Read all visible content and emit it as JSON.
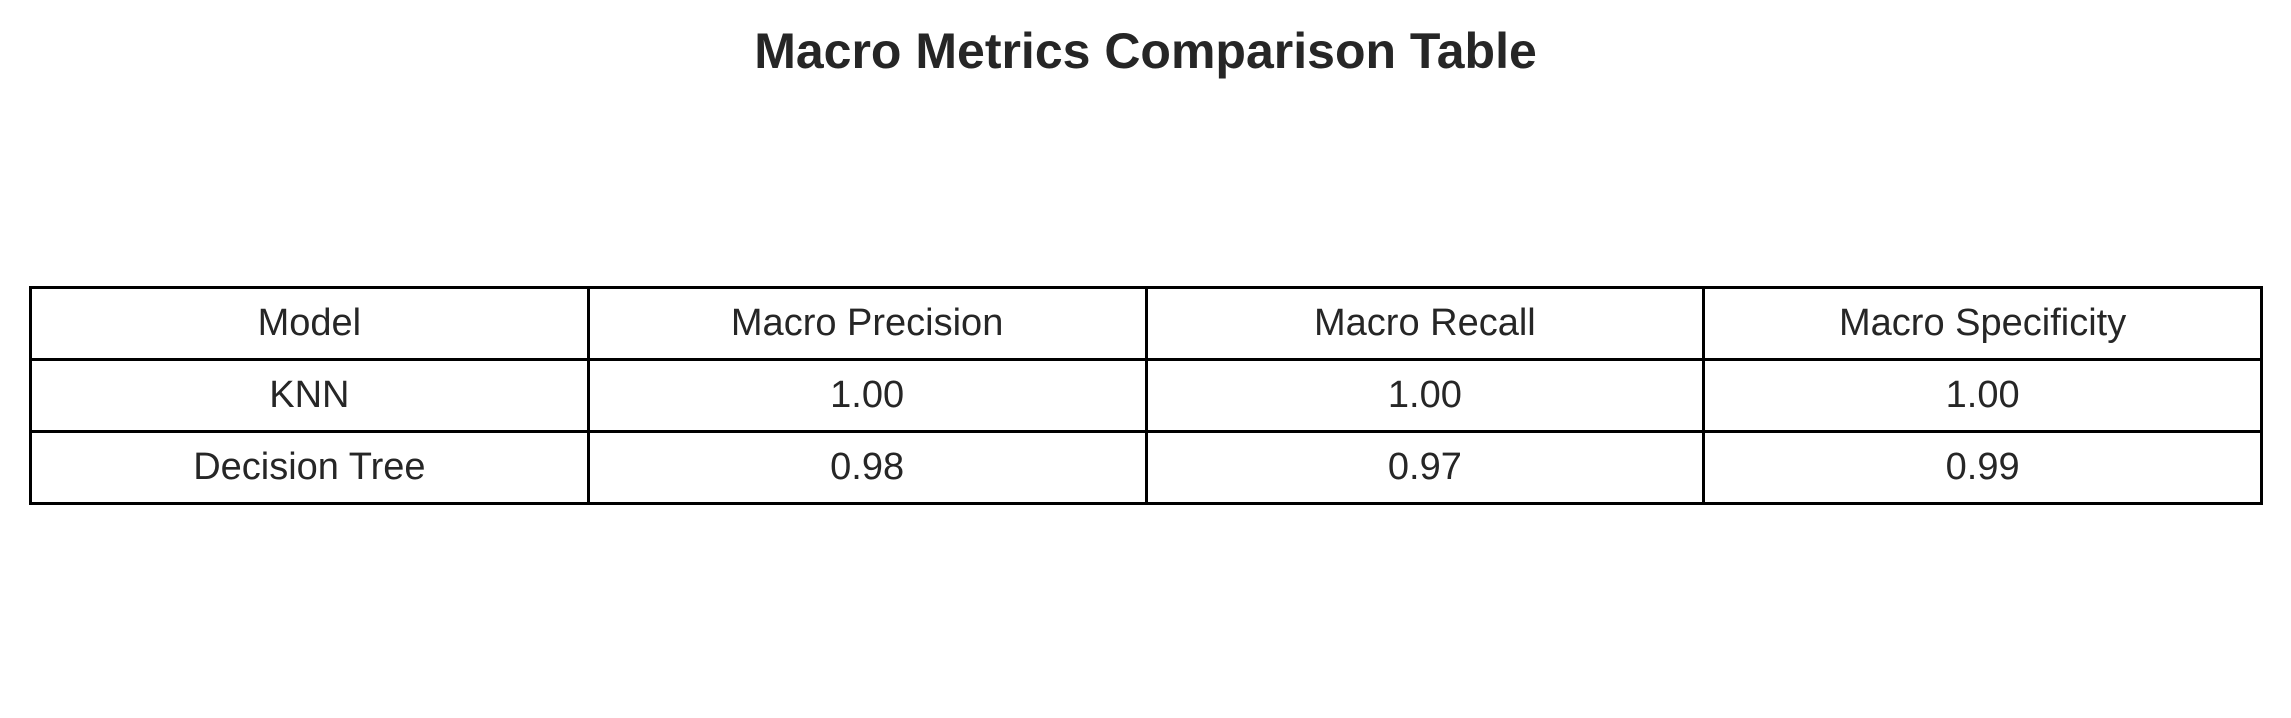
{
  "chart_data": {
    "type": "table",
    "title": "Macro Metrics Comparison Table",
    "columns": [
      "Model",
      "Macro Precision",
      "Macro Recall",
      "Macro Specificity"
    ],
    "rows": [
      [
        "KNN",
        "1.00",
        "1.00",
        "1.00"
      ],
      [
        "Decision Tree",
        "0.98",
        "0.97",
        "0.99"
      ]
    ]
  }
}
